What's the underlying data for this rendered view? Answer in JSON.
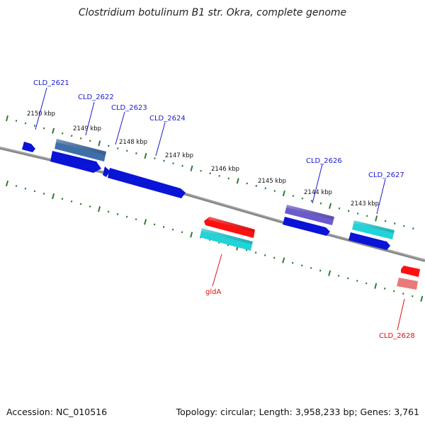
{
  "title": "Clostridium botulinum B1 str. Okra, complete genome",
  "footer": {
    "accession": "Accession: NC_010516",
    "summary": "Topology: circular; Length: 3,958,233 bp; Genes: 3,761"
  },
  "colors": {
    "backbone": "#808080",
    "tick": "#2e7d32",
    "gene_blue": "#0a14d6",
    "gene_steel": "#3f6fa8",
    "gene_purple": "#6a5acd",
    "gene_cyan": "#22d3d8",
    "gene_red": "#ff1010",
    "gene_pink": "#e87a7a",
    "label_blue": "#1a1acc",
    "label_red": "#dd1111"
  },
  "ticks": [
    {
      "label": "2150 kbp"
    },
    {
      "label": "2149 kbp"
    },
    {
      "label": "2148 kbp"
    },
    {
      "label": "2147 kbp"
    },
    {
      "label": "2146 kbp"
    },
    {
      "label": "2145 kbp"
    },
    {
      "label": "2144 kbp"
    },
    {
      "label": "2143 kbp"
    }
  ],
  "gene_labels": [
    {
      "text": "CLD_2621",
      "color": "label_blue"
    },
    {
      "text": "CLD_2622",
      "color": "label_blue"
    },
    {
      "text": "CLD_2623",
      "color": "label_blue"
    },
    {
      "text": "CLD_2624",
      "color": "label_blue"
    },
    {
      "text": "CLD_2626",
      "color": "label_blue"
    },
    {
      "text": "CLD_2627",
      "color": "label_blue"
    },
    {
      "text": "gldA",
      "color": "label_red"
    },
    {
      "text": "CLD_2628",
      "color": "label_red"
    }
  ]
}
